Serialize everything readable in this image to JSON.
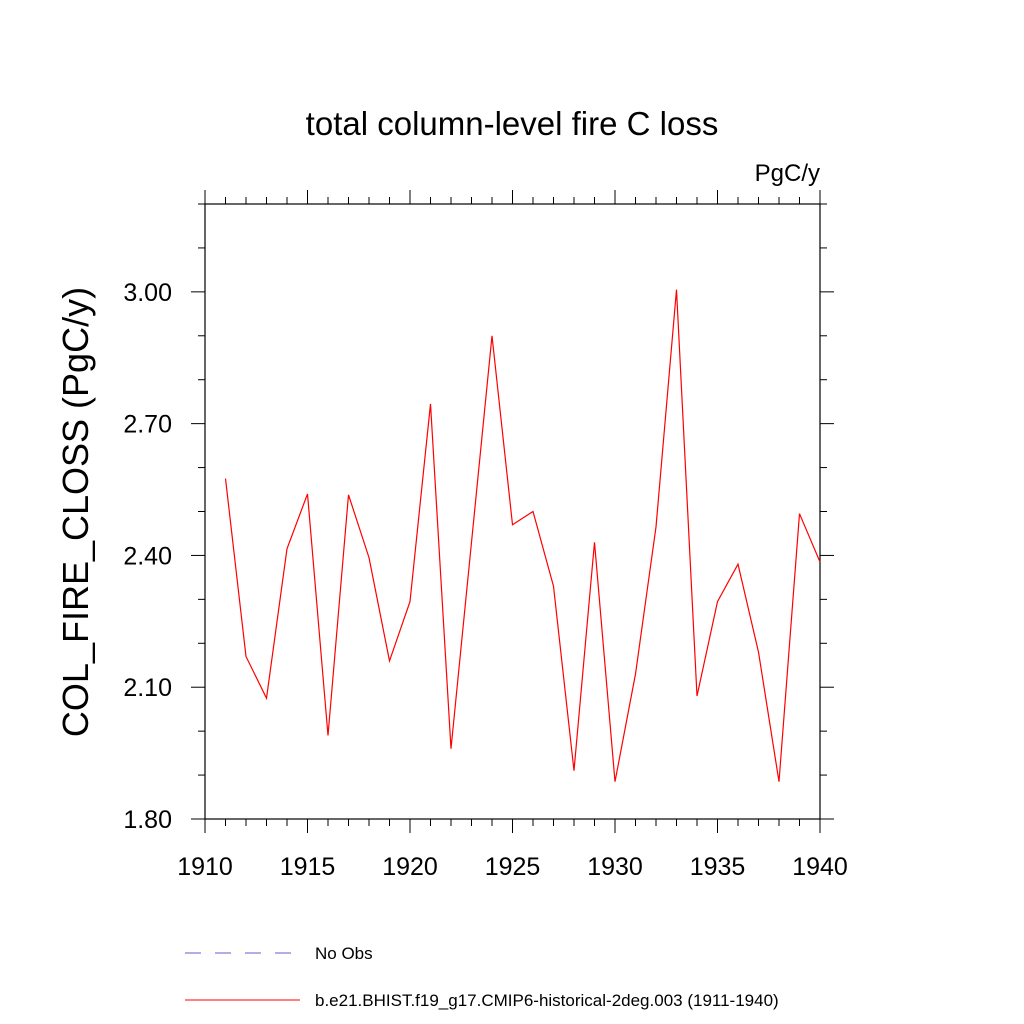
{
  "chart_data": {
    "type": "line",
    "title": "total column-level fire C loss",
    "units": "PgC/y",
    "ylabel": "COL_FIRE_CLOSS  (PgC/y)",
    "xlabel": "",
    "xlim": [
      1910,
      1940
    ],
    "ylim": [
      1.8,
      3.2
    ],
    "x_ticks": [
      1910,
      1915,
      1920,
      1925,
      1930,
      1935,
      1940
    ],
    "x_tick_labels": [
      "1910",
      "1915",
      "1920",
      "1925",
      "1930",
      "1935",
      "1940"
    ],
    "y_ticks": [
      1.8,
      2.1,
      2.4,
      2.7,
      3.0
    ],
    "y_tick_labels": [
      "1.80",
      "2.10",
      "2.40",
      "2.70",
      "3.00"
    ],
    "grid": false,
    "legend_position": "bottom",
    "series": [
      {
        "name": "b.e21.BHIST.f19_g17.CMIP6-historical-2deg.003 (1911-1940)",
        "color": "#ff0000",
        "style": "solid",
        "x": [
          1911,
          1912,
          1913,
          1914,
          1915,
          1916,
          1917,
          1918,
          1919,
          1920,
          1921,
          1922,
          1923,
          1924,
          1925,
          1926,
          1927,
          1928,
          1929,
          1930,
          1931,
          1932,
          1933,
          1934,
          1935,
          1936,
          1937,
          1938,
          1939,
          1940
        ],
        "values": [
          2.575,
          2.17,
          2.075,
          2.415,
          2.54,
          1.99,
          2.538,
          2.395,
          2.16,
          2.295,
          2.745,
          1.96,
          2.43,
          2.9,
          2.47,
          2.5,
          2.33,
          1.91,
          2.43,
          1.885,
          2.13,
          2.465,
          3.005,
          2.08,
          2.295,
          2.38,
          2.18,
          1.885,
          2.495,
          2.385
        ]
      }
    ],
    "legend": [
      {
        "label": "No Obs",
        "color": "#6a5acd",
        "style": "dashed"
      },
      {
        "label": "b.e21.BHIST.f19_g17.CMIP6-historical-2deg.003 (1911-1940)",
        "color": "#ff0000",
        "style": "solid"
      }
    ]
  }
}
